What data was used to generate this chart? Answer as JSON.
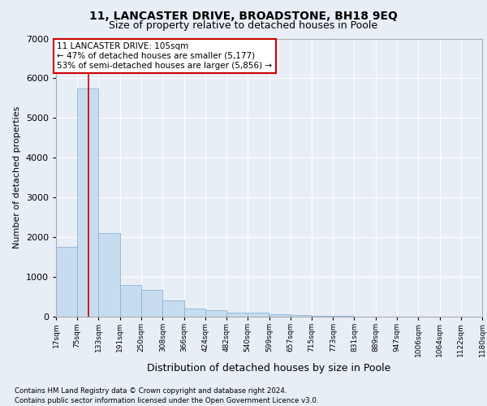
{
  "title": "11, LANCASTER DRIVE, BROADSTONE, BH18 9EQ",
  "subtitle": "Size of property relative to detached houses in Poole",
  "xlabel": "Distribution of detached houses by size in Poole",
  "ylabel": "Number of detached properties",
  "bins": [
    "17sqm",
    "75sqm",
    "133sqm",
    "191sqm",
    "250sqm",
    "308sqm",
    "366sqm",
    "424sqm",
    "482sqm",
    "540sqm",
    "599sqm",
    "657sqm",
    "715sqm",
    "773sqm",
    "831sqm",
    "889sqm",
    "947sqm",
    "1006sqm",
    "1064sqm",
    "1122sqm",
    "1180sqm"
  ],
  "bin_edges": [
    17,
    75,
    133,
    191,
    250,
    308,
    366,
    424,
    482,
    540,
    599,
    657,
    715,
    773,
    831,
    889,
    947,
    1006,
    1064,
    1122,
    1180
  ],
  "bar_heights": [
    1750,
    5750,
    2100,
    800,
    680,
    400,
    210,
    160,
    100,
    95,
    70,
    45,
    25,
    12,
    8,
    4,
    2,
    1,
    1,
    0,
    0
  ],
  "bar_color": "#c8dcf0",
  "bar_edge_color": "#8ab4d8",
  "red_line_x": 105,
  "ylim": [
    0,
    7000
  ],
  "annotation_line1": "11 LANCASTER DRIVE: 105sqm",
  "annotation_line2": "← 47% of detached houses are smaller (5,177)",
  "annotation_line3": "53% of semi-detached houses are larger (5,856) →",
  "annotation_box_color": "#ffffff",
  "annotation_box_edge": "#cc0000",
  "footer1": "Contains HM Land Registry data © Crown copyright and database right 2024.",
  "footer2": "Contains public sector information licensed under the Open Government Licence v3.0.",
  "background_color": "#e8eef6",
  "plot_bg_color": "#e8eef6",
  "title_fontsize": 10,
  "subtitle_fontsize": 9,
  "ylabel_fontsize": 8,
  "xlabel_fontsize": 9,
  "grid_color": "#ffffff",
  "yticks": [
    0,
    1000,
    2000,
    3000,
    4000,
    5000,
    6000,
    7000
  ]
}
